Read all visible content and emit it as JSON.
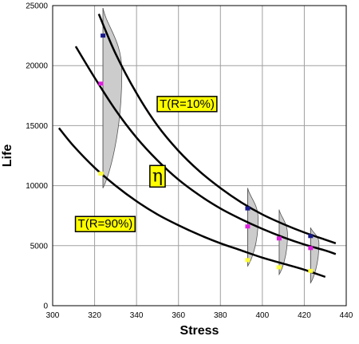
{
  "chart_data": {
    "type": "line",
    "title": "",
    "xlabel": "Stress",
    "ylabel": "Life",
    "xlim": [
      300,
      440
    ],
    "ylim": [
      0,
      25000
    ],
    "x_ticks": [
      300,
      320,
      340,
      360,
      380,
      400,
      420,
      440
    ],
    "y_ticks": [
      0,
      5000,
      10000,
      15000,
      20000,
      25000
    ],
    "grid": true,
    "colors": {
      "curve": "#000000",
      "label_fill": "#ffff00",
      "pdf_fill": "#cccccc",
      "point_top": "#1a1a8c",
      "point_mid": "#e020e0",
      "point_low": "#ffff33"
    },
    "annotations": [
      {
        "text": "T(R=10%)",
        "x": 351,
        "y": 16500,
        "style": "boxed"
      },
      {
        "text": "η",
        "x": 347.5,
        "y": 10350,
        "style": "boxed-symbol"
      },
      {
        "text": "T(R=90%)",
        "x": 312,
        "y": 6500,
        "style": "boxed"
      }
    ],
    "series": [
      {
        "x": [
          322,
          330,
          340,
          350,
          360,
          370,
          380,
          390,
          400,
          410,
          420,
          430,
          435
        ],
        "values": [
          24300,
          21000,
          17700,
          15000,
          12900,
          11200,
          9800,
          8600,
          7600,
          6800,
          6100,
          5500,
          5200
        ]
      },
      {
        "x": [
          311,
          320,
          330,
          340,
          350,
          360,
          370,
          380,
          390,
          400,
          410,
          420,
          430,
          435
        ],
        "values": [
          21600,
          19000,
          16300,
          14000,
          12100,
          10500,
          9200,
          8100,
          7200,
          6400,
          5700,
          5100,
          4600,
          4300
        ]
      },
      {
        "x": [
          303,
          310,
          320,
          330,
          340,
          350,
          360,
          370,
          380,
          390,
          400,
          410,
          420,
          430
        ],
        "values": [
          14800,
          13300,
          11500,
          10000,
          8700,
          7600,
          6700,
          5900,
          5200,
          4600,
          4000,
          3500,
          3000,
          2400
        ]
      }
    ],
    "points": [
      {
        "x": 324,
        "y": 22500,
        "role": "top"
      },
      {
        "x": 323,
        "y": 18500,
        "role": "mid"
      },
      {
        "x": 323,
        "y": 11000,
        "role": "low"
      },
      {
        "x": 393,
        "y": 8100,
        "role": "top"
      },
      {
        "x": 393,
        "y": 6600,
        "role": "mid"
      },
      {
        "x": 393,
        "y": 3800,
        "role": "low"
      },
      {
        "x": 408,
        "y": 5600,
        "role": "mid"
      },
      {
        "x": 408,
        "y": 3200,
        "role": "low"
      },
      {
        "x": 423,
        "y": 5800,
        "role": "top"
      },
      {
        "x": 423,
        "y": 4800,
        "role": "mid"
      },
      {
        "x": 423,
        "y": 2900,
        "role": "low"
      }
    ],
    "pdfs": [
      {
        "x": 324,
        "y_min": 9800,
        "y_max": 24800,
        "peak_y": 19500,
        "peak_dx": 9
      },
      {
        "x": 393,
        "y_min": 3300,
        "y_max": 9800,
        "peak_y": 7200,
        "peak_dx": 5
      },
      {
        "x": 408,
        "y_min": 2600,
        "y_max": 8000,
        "peak_y": 5900,
        "peak_dx": 4
      },
      {
        "x": 423,
        "y_min": 1900,
        "y_max": 6500,
        "peak_y": 5200,
        "peak_dx": 4
      }
    ]
  }
}
